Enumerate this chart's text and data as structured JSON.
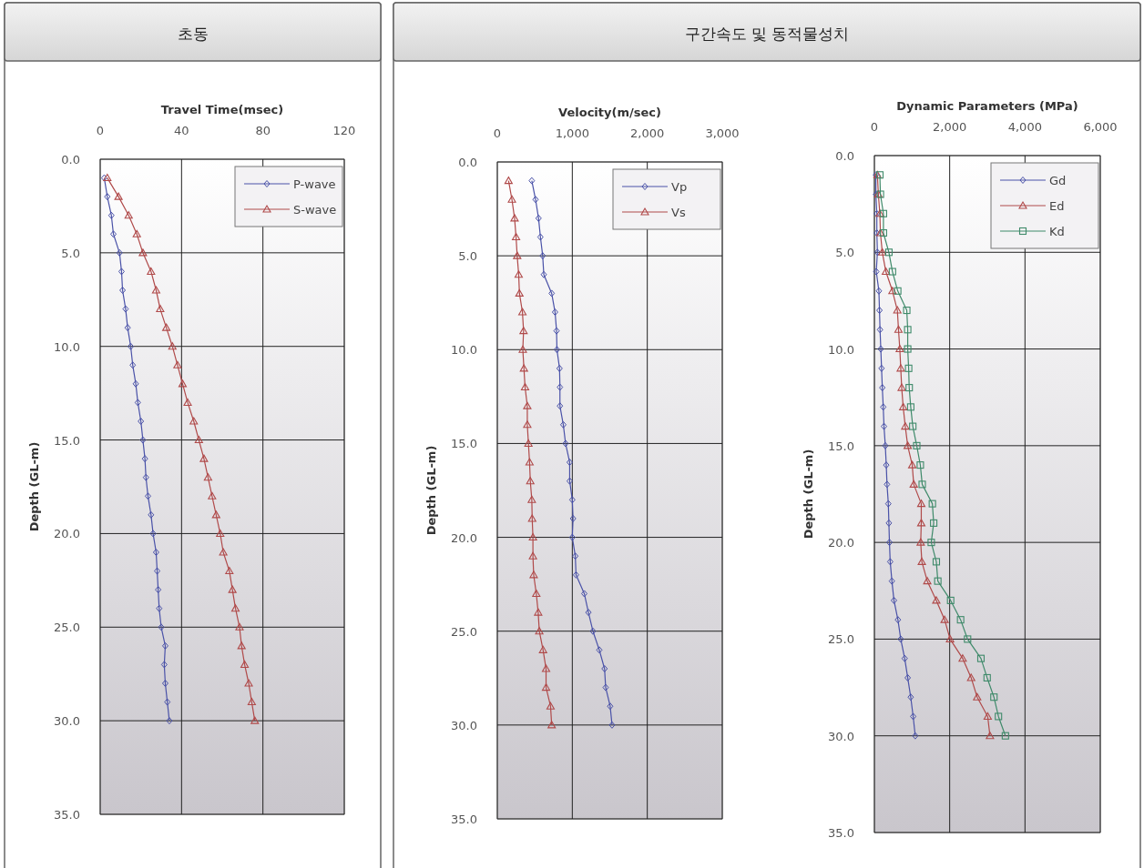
{
  "chart_data": [
    {
      "type": "line",
      "title": "초동",
      "xlabel": "Travel Time(msec)",
      "ylabel": "Depth (GL-m)",
      "xlim": [
        0,
        120
      ],
      "xticks": [
        0,
        40,
        80,
        120
      ],
      "ylim": [
        35,
        0
      ],
      "yticks": [
        {
          "value": 0,
          "label": "0.0"
        },
        {
          "value": 5,
          "label": "5.0"
        },
        {
          "value": 10,
          "label": "10.0"
        },
        {
          "value": 15,
          "label": "15.0"
        },
        {
          "value": 20,
          "label": "20.0"
        },
        {
          "value": 25,
          "label": "25.0"
        },
        {
          "value": 30,
          "label": "30.0"
        },
        {
          "value": 35,
          "label": "35.0"
        }
      ],
      "grid": true,
      "legend": "top right",
      "series": [
        {
          "name": "P-wave",
          "color": "#4a52a8",
          "marker": "diamond",
          "x": [
            2,
            3.5,
            5.5,
            6.5,
            9.5,
            10.5,
            11,
            12.5,
            13.5,
            15,
            16,
            17.5,
            18.5,
            20,
            21,
            22,
            22.5,
            23.5,
            25,
            26,
            27.5,
            28,
            28.5,
            29,
            30,
            32,
            31.5,
            32,
            33,
            34
          ],
          "values": [
            1,
            2,
            3,
            4,
            5,
            6,
            7,
            8,
            9,
            10,
            11,
            12,
            13,
            14,
            15,
            16,
            17,
            18,
            19,
            20,
            21,
            22,
            23,
            24,
            25,
            26,
            27,
            28,
            29,
            30
          ]
        },
        {
          "name": "S-wave",
          "color": "#b04a4a",
          "marker": "triangle",
          "x": [
            3.5,
            9,
            14,
            18,
            21,
            25,
            27.5,
            29.5,
            32.5,
            35.5,
            38,
            40.5,
            43,
            46,
            48.5,
            51,
            53,
            55,
            57,
            59,
            60.5,
            63.5,
            65,
            66.5,
            68.5,
            69.5,
            71,
            73,
            74.5,
            76
          ],
          "values": [
            1,
            2,
            3,
            4,
            5,
            6,
            7,
            8,
            9,
            10,
            11,
            12,
            13,
            14,
            15,
            16,
            17,
            18,
            19,
            20,
            21,
            22,
            23,
            24,
            25,
            26,
            27,
            28,
            29,
            30
          ]
        }
      ]
    },
    {
      "type": "line",
      "title": "구간속도 및 동적물성치",
      "xlabel": "Velocity(m/sec)",
      "ylabel": "Depth (GL-m)",
      "xlim": [
        0,
        3000
      ],
      "xticks": [
        0,
        {
          "value": 1000,
          "label": "1,000"
        },
        {
          "value": 2000,
          "label": "2,000"
        },
        {
          "value": 3000,
          "label": "3,000"
        }
      ],
      "ylim": [
        35,
        0
      ],
      "yticks": [
        {
          "value": 0,
          "label": "0.0"
        },
        {
          "value": 5,
          "label": "5.0"
        },
        {
          "value": 10,
          "label": "10.0"
        },
        {
          "value": 15,
          "label": "15.0"
        },
        {
          "value": 20,
          "label": "20.0"
        },
        {
          "value": 25,
          "label": "25.0"
        },
        {
          "value": 30,
          "label": "30.0"
        },
        {
          "value": 35,
          "label": "35.0"
        }
      ],
      "grid": true,
      "legend": "top right",
      "series": [
        {
          "name": "Vp",
          "color": "#4a52a8",
          "marker": "diamond",
          "x": [
            460,
            510,
            550,
            575,
            605,
            620,
            725,
            770,
            790,
            795,
            830,
            835,
            835,
            880,
            910,
            965,
            965,
            1000,
            1010,
            1000,
            1040,
            1050,
            1160,
            1215,
            1275,
            1360,
            1430,
            1445,
            1505,
            1530
          ],
          "values": [
            1,
            2,
            3,
            4,
            5,
            6,
            7,
            8,
            9,
            10,
            11,
            12,
            13,
            14,
            15,
            16,
            17,
            18,
            19,
            20,
            21,
            22,
            23,
            24,
            25,
            26,
            27,
            28,
            29,
            30
          ]
        },
        {
          "name": "Vs",
          "color": "#b04a4a",
          "marker": "triangle",
          "x": [
            150,
            195,
            230,
            250,
            265,
            285,
            295,
            335,
            350,
            340,
            355,
            370,
            400,
            400,
            415,
            430,
            440,
            460,
            465,
            475,
            475,
            485,
            520,
            545,
            560,
            610,
            650,
            650,
            710,
            725
          ],
          "values": [
            1,
            2,
            3,
            4,
            5,
            6,
            7,
            8,
            9,
            10,
            11,
            12,
            13,
            14,
            15,
            16,
            17,
            18,
            19,
            20,
            21,
            22,
            23,
            24,
            25,
            26,
            27,
            28,
            29,
            30
          ]
        }
      ]
    },
    {
      "type": "line",
      "xlabel": "Dynamic Parameters (MPa)",
      "ylabel": "Depth (GL-m)",
      "xlim": [
        0,
        6000
      ],
      "xticks": [
        0,
        {
          "value": 2000,
          "label": "2,000"
        },
        {
          "value": 4000,
          "label": "4,000"
        },
        {
          "value": 6000,
          "label": "6,000"
        }
      ],
      "ylim": [
        35,
        0
      ],
      "yticks": [
        {
          "value": 0,
          "label": "0.0"
        },
        {
          "value": 5,
          "label": "5.0"
        },
        {
          "value": 10,
          "label": "10.0"
        },
        {
          "value": 15,
          "label": "15.0"
        },
        {
          "value": 20,
          "label": "20.0"
        },
        {
          "value": 25,
          "label": "25.0"
        },
        {
          "value": 30,
          "label": "30.0"
        },
        {
          "value": 35,
          "label": "35.0"
        }
      ],
      "grid": true,
      "legend": "top right",
      "series": [
        {
          "name": "Gd",
          "color": "#4a52a8",
          "marker": "diamond",
          "x": [
            40,
            40,
            65,
            65,
            80,
            50,
            120,
            135,
            150,
            170,
            190,
            210,
            235,
            255,
            290,
            315,
            335,
            370,
            385,
            400,
            420,
            465,
            520,
            625,
            700,
            805,
            885,
            965,
            1030,
            1085
          ],
          "values": [
            1,
            2,
            3,
            4,
            5,
            6,
            7,
            8,
            9,
            10,
            11,
            12,
            13,
            14,
            15,
            16,
            17,
            18,
            19,
            20,
            21,
            22,
            23,
            24,
            25,
            26,
            27,
            28,
            29,
            30
          ]
        },
        {
          "name": "Ed",
          "color": "#b04a4a",
          "marker": "triangle",
          "x": [
            80,
            105,
            145,
            160,
            210,
            305,
            480,
            610,
            640,
            675,
            700,
            725,
            765,
            820,
            885,
            1005,
            1045,
            1245,
            1245,
            1230,
            1260,
            1405,
            1645,
            1865,
            2010,
            2345,
            2570,
            2730,
            3010,
            3070
          ],
          "values": [
            1,
            2,
            3,
            4,
            5,
            6,
            7,
            8,
            9,
            10,
            11,
            12,
            13,
            14,
            15,
            16,
            17,
            18,
            19,
            20,
            21,
            22,
            23,
            24,
            25,
            26,
            27,
            28,
            29,
            30
          ]
        },
        {
          "name": "Kd",
          "color": "#3f8a6a",
          "marker": "square",
          "x": [
            145,
            160,
            240,
            240,
            385,
            480,
            620,
            860,
            885,
            885,
            910,
            925,
            965,
            1020,
            1125,
            1220,
            1270,
            1540,
            1575,
            1510,
            1645,
            1685,
            2025,
            2290,
            2475,
            2830,
            2995,
            3175,
            3295,
            3480
          ],
          "values": [
            1,
            2,
            3,
            4,
            5,
            6,
            7,
            8,
            9,
            10,
            11,
            12,
            13,
            14,
            15,
            16,
            17,
            18,
            19,
            20,
            21,
            22,
            23,
            24,
            25,
            26,
            27,
            28,
            29,
            30
          ]
        }
      ]
    }
  ]
}
